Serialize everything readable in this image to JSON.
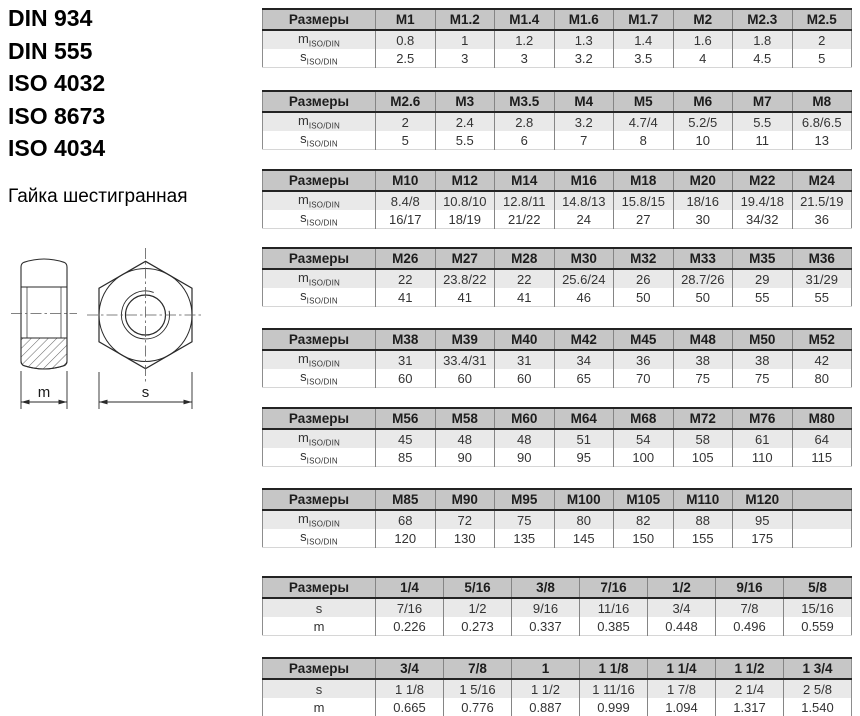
{
  "colors": {
    "header_bg": "#c6c6c6",
    "alt_row_bg": "#e9e9e9",
    "border_dark": "#232323",
    "border_gray": "#858585",
    "text": "#333333"
  },
  "left_panel": {
    "standards": [
      "DIN 934",
      "DIN 555",
      "ISO 4032",
      "ISO 8673",
      "ISO 4034"
    ],
    "product_name": "Гайка шестигранная"
  },
  "drawing": {
    "dim_m": "m",
    "dim_s": "s"
  },
  "table_common": {
    "size_header": "Размеры"
  },
  "table_gaps": [
    22,
    19,
    18,
    21,
    19,
    21,
    28,
    21,
    0
  ],
  "tables": [
    {
      "header": [
        "M1",
        "M1.2",
        "M1.4",
        "M1.6",
        "M1.7",
        "M2",
        "M2.3",
        "M2.5"
      ],
      "rows": [
        {
          "base": "m",
          "sub": "ISO/DIN",
          "values": [
            "0.8",
            "1",
            "1.2",
            "1.3",
            "1.4",
            "1.6",
            "1.8",
            "2"
          ]
        },
        {
          "base": "s",
          "sub": "ISO/DIN",
          "values": [
            "2.5",
            "3",
            "3",
            "3.2",
            "3.5",
            "4",
            "4.5",
            "5"
          ]
        }
      ]
    },
    {
      "header": [
        "M2.6",
        "M3",
        "M3.5",
        "M4",
        "M5",
        "M6",
        "M7",
        "M8"
      ],
      "rows": [
        {
          "base": "m",
          "sub": "ISO/DIN",
          "values": [
            "2",
            "2.4",
            "2.8",
            "3.2",
            "4.7/4",
            "5.2/5",
            "5.5",
            "6.8/6.5"
          ]
        },
        {
          "base": "s",
          "sub": "ISO/DIN",
          "values": [
            "5",
            "5.5",
            "6",
            "7",
            "8",
            "10",
            "11",
            "13"
          ]
        }
      ]
    },
    {
      "header": [
        "M10",
        "M12",
        "M14",
        "M16",
        "M18",
        "M20",
        "M22",
        "M24"
      ],
      "rows": [
        {
          "base": "m",
          "sub": "ISO/DIN",
          "values": [
            "8.4/8",
            "10.8/10",
            "12.8/11",
            "14.8/13",
            "15.8/15",
            "18/16",
            "19.4/18",
            "21.5/19"
          ]
        },
        {
          "base": "s",
          "sub": "ISO/DIN",
          "values": [
            "16/17",
            "18/19",
            "21/22",
            "24",
            "27",
            "30",
            "34/32",
            "36"
          ]
        }
      ]
    },
    {
      "header": [
        "M26",
        "M27",
        "M28",
        "M30",
        "M32",
        "M33",
        "M35",
        "M36"
      ],
      "rows": [
        {
          "base": "m",
          "sub": "ISO/DIN",
          "values": [
            "22",
            "23.8/22",
            "22",
            "25.6/24",
            "26",
            "28.7/26",
            "29",
            "31/29"
          ]
        },
        {
          "base": "s",
          "sub": "ISO/DIN",
          "values": [
            "41",
            "41",
            "41",
            "46",
            "50",
            "50",
            "55",
            "55"
          ]
        }
      ]
    },
    {
      "header": [
        "M38",
        "M39",
        "M40",
        "M42",
        "M45",
        "M48",
        "M50",
        "M52"
      ],
      "rows": [
        {
          "base": "m",
          "sub": "ISO/DIN",
          "values": [
            "31",
            "33.4/31",
            "31",
            "34",
            "36",
            "38",
            "38",
            "42"
          ]
        },
        {
          "base": "s",
          "sub": "ISO/DIN",
          "values": [
            "60",
            "60",
            "60",
            "65",
            "70",
            "75",
            "75",
            "80"
          ]
        }
      ]
    },
    {
      "header": [
        "M56",
        "M58",
        "M60",
        "M64",
        "M68",
        "M72",
        "M76",
        "M80"
      ],
      "rows": [
        {
          "base": "m",
          "sub": "ISO/DIN",
          "values": [
            "45",
            "48",
            "48",
            "51",
            "54",
            "58",
            "61",
            "64"
          ]
        },
        {
          "base": "s",
          "sub": "ISO/DIN",
          "values": [
            "85",
            "90",
            "90",
            "95",
            "100",
            "105",
            "110",
            "115"
          ]
        }
      ]
    },
    {
      "header": [
        "M85",
        "M90",
        "M95",
        "M100",
        "M105",
        "M110",
        "M120",
        ""
      ],
      "rows": [
        {
          "base": "m",
          "sub": "ISO/DIN",
          "values": [
            "68",
            "72",
            "75",
            "80",
            "82",
            "88",
            "95",
            ""
          ]
        },
        {
          "base": "s",
          "sub": "ISO/DIN",
          "values": [
            "120",
            "130",
            "135",
            "145",
            "150",
            "155",
            "175",
            ""
          ]
        }
      ]
    },
    {
      "header": [
        "1/4",
        "5/16",
        "3/8",
        "7/16",
        "1/2",
        "9/16",
        "5/8"
      ],
      "rows": [
        {
          "base": "s",
          "sub": "",
          "values": [
            "7/16",
            "1/2",
            "9/16",
            "11/16",
            "3/4",
            "7/8",
            "15/16"
          ]
        },
        {
          "base": "m",
          "sub": "",
          "values": [
            "0.226",
            "0.273",
            "0.337",
            "0.385",
            "0.448",
            "0.496",
            "0.559"
          ]
        }
      ]
    },
    {
      "header": [
        "3/4",
        "7/8",
        "1",
        "1 1/8",
        "1 1/4",
        "1 1/2",
        "1 3/4"
      ],
      "rows": [
        {
          "base": "s",
          "sub": "",
          "values": [
            "1 1/8",
            "1 5/16",
            "1 1/2",
            "1 11/16",
            "1 7/8",
            "2 1/4",
            "2 5/8"
          ]
        },
        {
          "base": "m",
          "sub": "",
          "values": [
            "0.665",
            "0.776",
            "0.887",
            "0.999",
            "1.094",
            "1.317",
            "1.540"
          ]
        }
      ]
    }
  ]
}
